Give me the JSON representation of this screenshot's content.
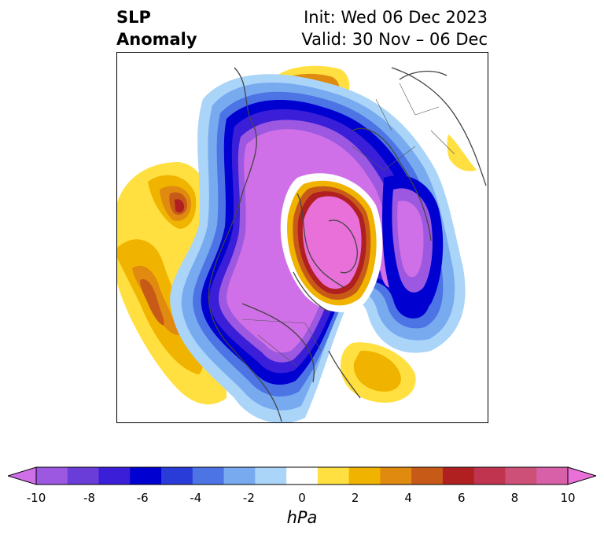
{
  "title": {
    "left_line1": "SLP",
    "left_line2": "Anomaly",
    "right_line1": "Init: Wed 06 Dec 2023",
    "right_line2": "Valid: 30 Nov – 06 Dec"
  },
  "colorbar": {
    "unit": "hPa",
    "ticks": [
      "-10",
      "-8",
      "-6",
      "-4",
      "-2",
      "0",
      "2",
      "4",
      "6",
      "8",
      "10"
    ],
    "colors": [
      "#d070e8",
      "#9c58e0",
      "#6a3cd8",
      "#3a1ed8",
      "#0000d0",
      "#2a3cd8",
      "#4c74e4",
      "#78aaf0",
      "#aad4f8",
      "#ffffff",
      "#ffe040",
      "#f0b400",
      "#e08a10",
      "#c85a18",
      "#b02020",
      "#c03450",
      "#cc5078",
      "#d860a8",
      "#e870d8"
    ]
  },
  "map": {
    "projection": "north-polar-stereographic",
    "variable": "sea-level-pressure-anomaly"
  }
}
